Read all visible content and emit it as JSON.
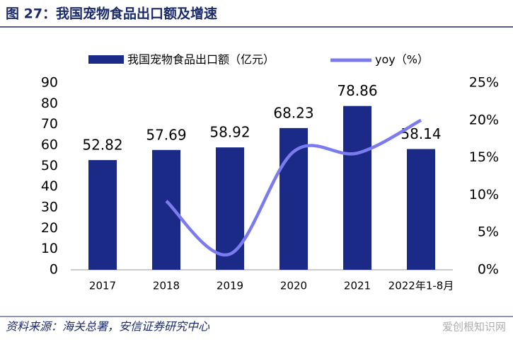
{
  "chart_data": {
    "type": "bar",
    "title": "图 27：我国宠物食品出口额及增速",
    "source": "资料来源：海关总署，安信证券研究中心",
    "watermark": "爱创根知识网",
    "categories": [
      "2017",
      "2018",
      "2019",
      "2020",
      "2021",
      "2022年1-8月"
    ],
    "series": [
      {
        "name": "我国宠物食品出口额（亿元）",
        "color": "#1b2a87",
        "type": "bar",
        "values": [
          52.82,
          57.69,
          58.92,
          68.23,
          78.86,
          58.14
        ]
      },
      {
        "name": "yoy（%）",
        "color": "#7b7bef",
        "type": "line",
        "axis": "y2",
        "values": [
          null,
          9.2,
          2.1,
          15.8,
          15.6,
          20.0
        ]
      }
    ],
    "ylim": [
      0,
      90
    ],
    "yticks": [
      0,
      10,
      20,
      30,
      40,
      50,
      60,
      70,
      80,
      90
    ],
    "y2lim": [
      0,
      25
    ],
    "y2ticks": [
      {
        "value": 0,
        "label": "0%"
      },
      {
        "value": 5,
        "label": "5%"
      },
      {
        "value": 10,
        "label": "10%"
      },
      {
        "value": 15,
        "label": "15%"
      },
      {
        "value": 20,
        "label": "20%"
      },
      {
        "value": 25,
        "label": "25%"
      }
    ]
  }
}
